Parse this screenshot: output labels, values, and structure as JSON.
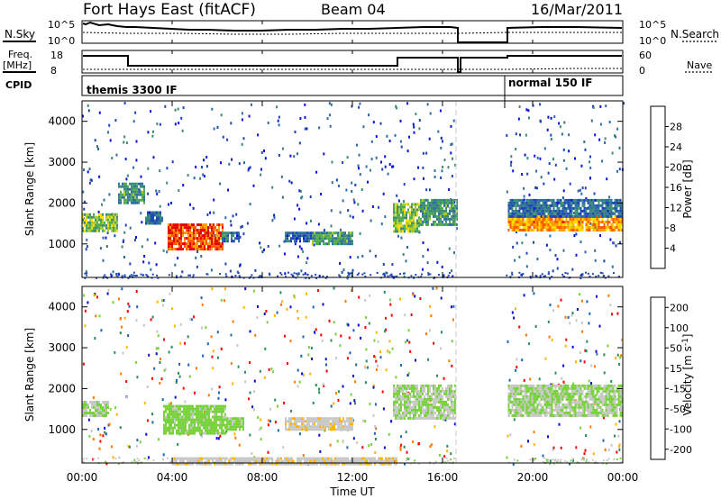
{
  "header": {
    "title": "Fort Hays East (fitACF)",
    "beam": "Beam 04",
    "date": "16/Mar/2011"
  },
  "top_panels": {
    "nsky_label": "N.Sky",
    "nsky_ticks": [
      "10^5",
      "10^0"
    ],
    "nsearch_label": "N.Search",
    "nsearch_ticks": [
      "10^5",
      "10^0"
    ],
    "freq_label": "Freq.",
    "freq_unit": "[MHz]",
    "freq_ticks": [
      "18",
      "8"
    ],
    "nave_label": "Nave",
    "nave_ticks": [
      "60",
      "0"
    ],
    "cpid_label": "CPID",
    "cpid_segments": [
      {
        "label": "themis 3300 IF",
        "start_hr": 0.0,
        "end_hr": 18.4
      },
      {
        "label": "normal 150 IF",
        "start_hr": 18.4,
        "end_hr": 24.0
      }
    ]
  },
  "x_axis": {
    "label": "Time UT",
    "ticks": [
      "00:00",
      "04:00",
      "08:00",
      "12:00",
      "16:00",
      "20:00",
      "00:00"
    ],
    "range_hr": [
      0,
      24
    ],
    "data_gap_hr": [
      16.6,
      18.8
    ]
  },
  "chart_data": [
    {
      "type": "heatmap",
      "title": "Power",
      "ylabel": "Slant Range [km]",
      "yticks": [
        "1000",
        "2000",
        "3000",
        "4000"
      ],
      "ylim": [
        180,
        4500
      ],
      "colorbar": {
        "label": "Power [dB]",
        "ticks": [
          "28",
          "24",
          "20",
          "16",
          "12",
          "8",
          "4"
        ],
        "range": [
          0,
          32
        ],
        "colors": [
          "#0a14dc",
          "#1e46b4",
          "#2f6ea0",
          "#3c8c78",
          "#50aa50",
          "#a8cc28",
          "#ffdc00",
          "#ffa000",
          "#ff5a00",
          "#e60000"
        ]
      },
      "regions": [
        {
          "t": [
            0.0,
            1.6
          ],
          "r": [
            1300,
            1750
          ],
          "level": 16
        },
        {
          "t": [
            1.6,
            2.8
          ],
          "r": [
            2000,
            2500
          ],
          "level": 12
        },
        {
          "t": [
            2.8,
            3.6
          ],
          "r": [
            1500,
            1800
          ],
          "level": 8
        },
        {
          "t": [
            3.8,
            6.2
          ],
          "r": [
            900,
            1500
          ],
          "level": 28
        },
        {
          "t": [
            6.2,
            7.0
          ],
          "r": [
            1050,
            1300
          ],
          "level": 8
        },
        {
          "t": [
            9.0,
            10.2
          ],
          "r": [
            1050,
            1300
          ],
          "level": 8
        },
        {
          "t": [
            10.2,
            12.0
          ],
          "r": [
            1000,
            1300
          ],
          "level": 12
        },
        {
          "t": [
            13.8,
            15.0
          ],
          "r": [
            1300,
            2000
          ],
          "level": 16
        },
        {
          "t": [
            15.0,
            16.6
          ],
          "r": [
            1500,
            2100
          ],
          "level": 12
        },
        {
          "t": [
            18.9,
            24.0
          ],
          "r": [
            1350,
            1700
          ],
          "level": 24
        },
        {
          "t": [
            18.9,
            24.0
          ],
          "r": [
            1700,
            2100
          ],
          "level": 8
        }
      ]
    },
    {
      "type": "heatmap",
      "title": "Velocity",
      "ylabel": "Slant Range [km]",
      "yticks": [
        "1000",
        "2000",
        "3000",
        "4000"
      ],
      "ylim": [
        180,
        4500
      ],
      "colorbar": {
        "label": "Velocity [m s^-1]",
        "ticks": [
          "200",
          "100",
          "50",
          "15",
          "-15",
          "-50",
          "-100",
          "-200"
        ],
        "range": [
          -250,
          250
        ],
        "colors": [
          "#0a0ad2",
          "#1e64b4",
          "#2d8c5a",
          "#78d23c",
          "#c8c8c8",
          "#ffb400",
          "#ff7800",
          "#ff0000"
        ]
      },
      "regions": [
        {
          "t": [
            0.0,
            1.2
          ],
          "r": [
            1350,
            1700
          ],
          "level": 0
        },
        {
          "t": [
            3.6,
            6.4
          ],
          "r": [
            900,
            1600
          ],
          "level": 15
        },
        {
          "t": [
            6.4,
            7.2
          ],
          "r": [
            1000,
            1300
          ],
          "level": 15
        },
        {
          "t": [
            9.0,
            12.0
          ],
          "r": [
            1000,
            1300
          ],
          "level": -50
        },
        {
          "t": [
            13.8,
            16.6
          ],
          "r": [
            1300,
            2100
          ],
          "level": 0
        },
        {
          "t": [
            18.9,
            24.0
          ],
          "r": [
            1350,
            2100
          ],
          "level": 0
        },
        {
          "t": [
            4.0,
            14.0
          ],
          "r": [
            180,
            320
          ],
          "level": -50
        }
      ]
    }
  ]
}
